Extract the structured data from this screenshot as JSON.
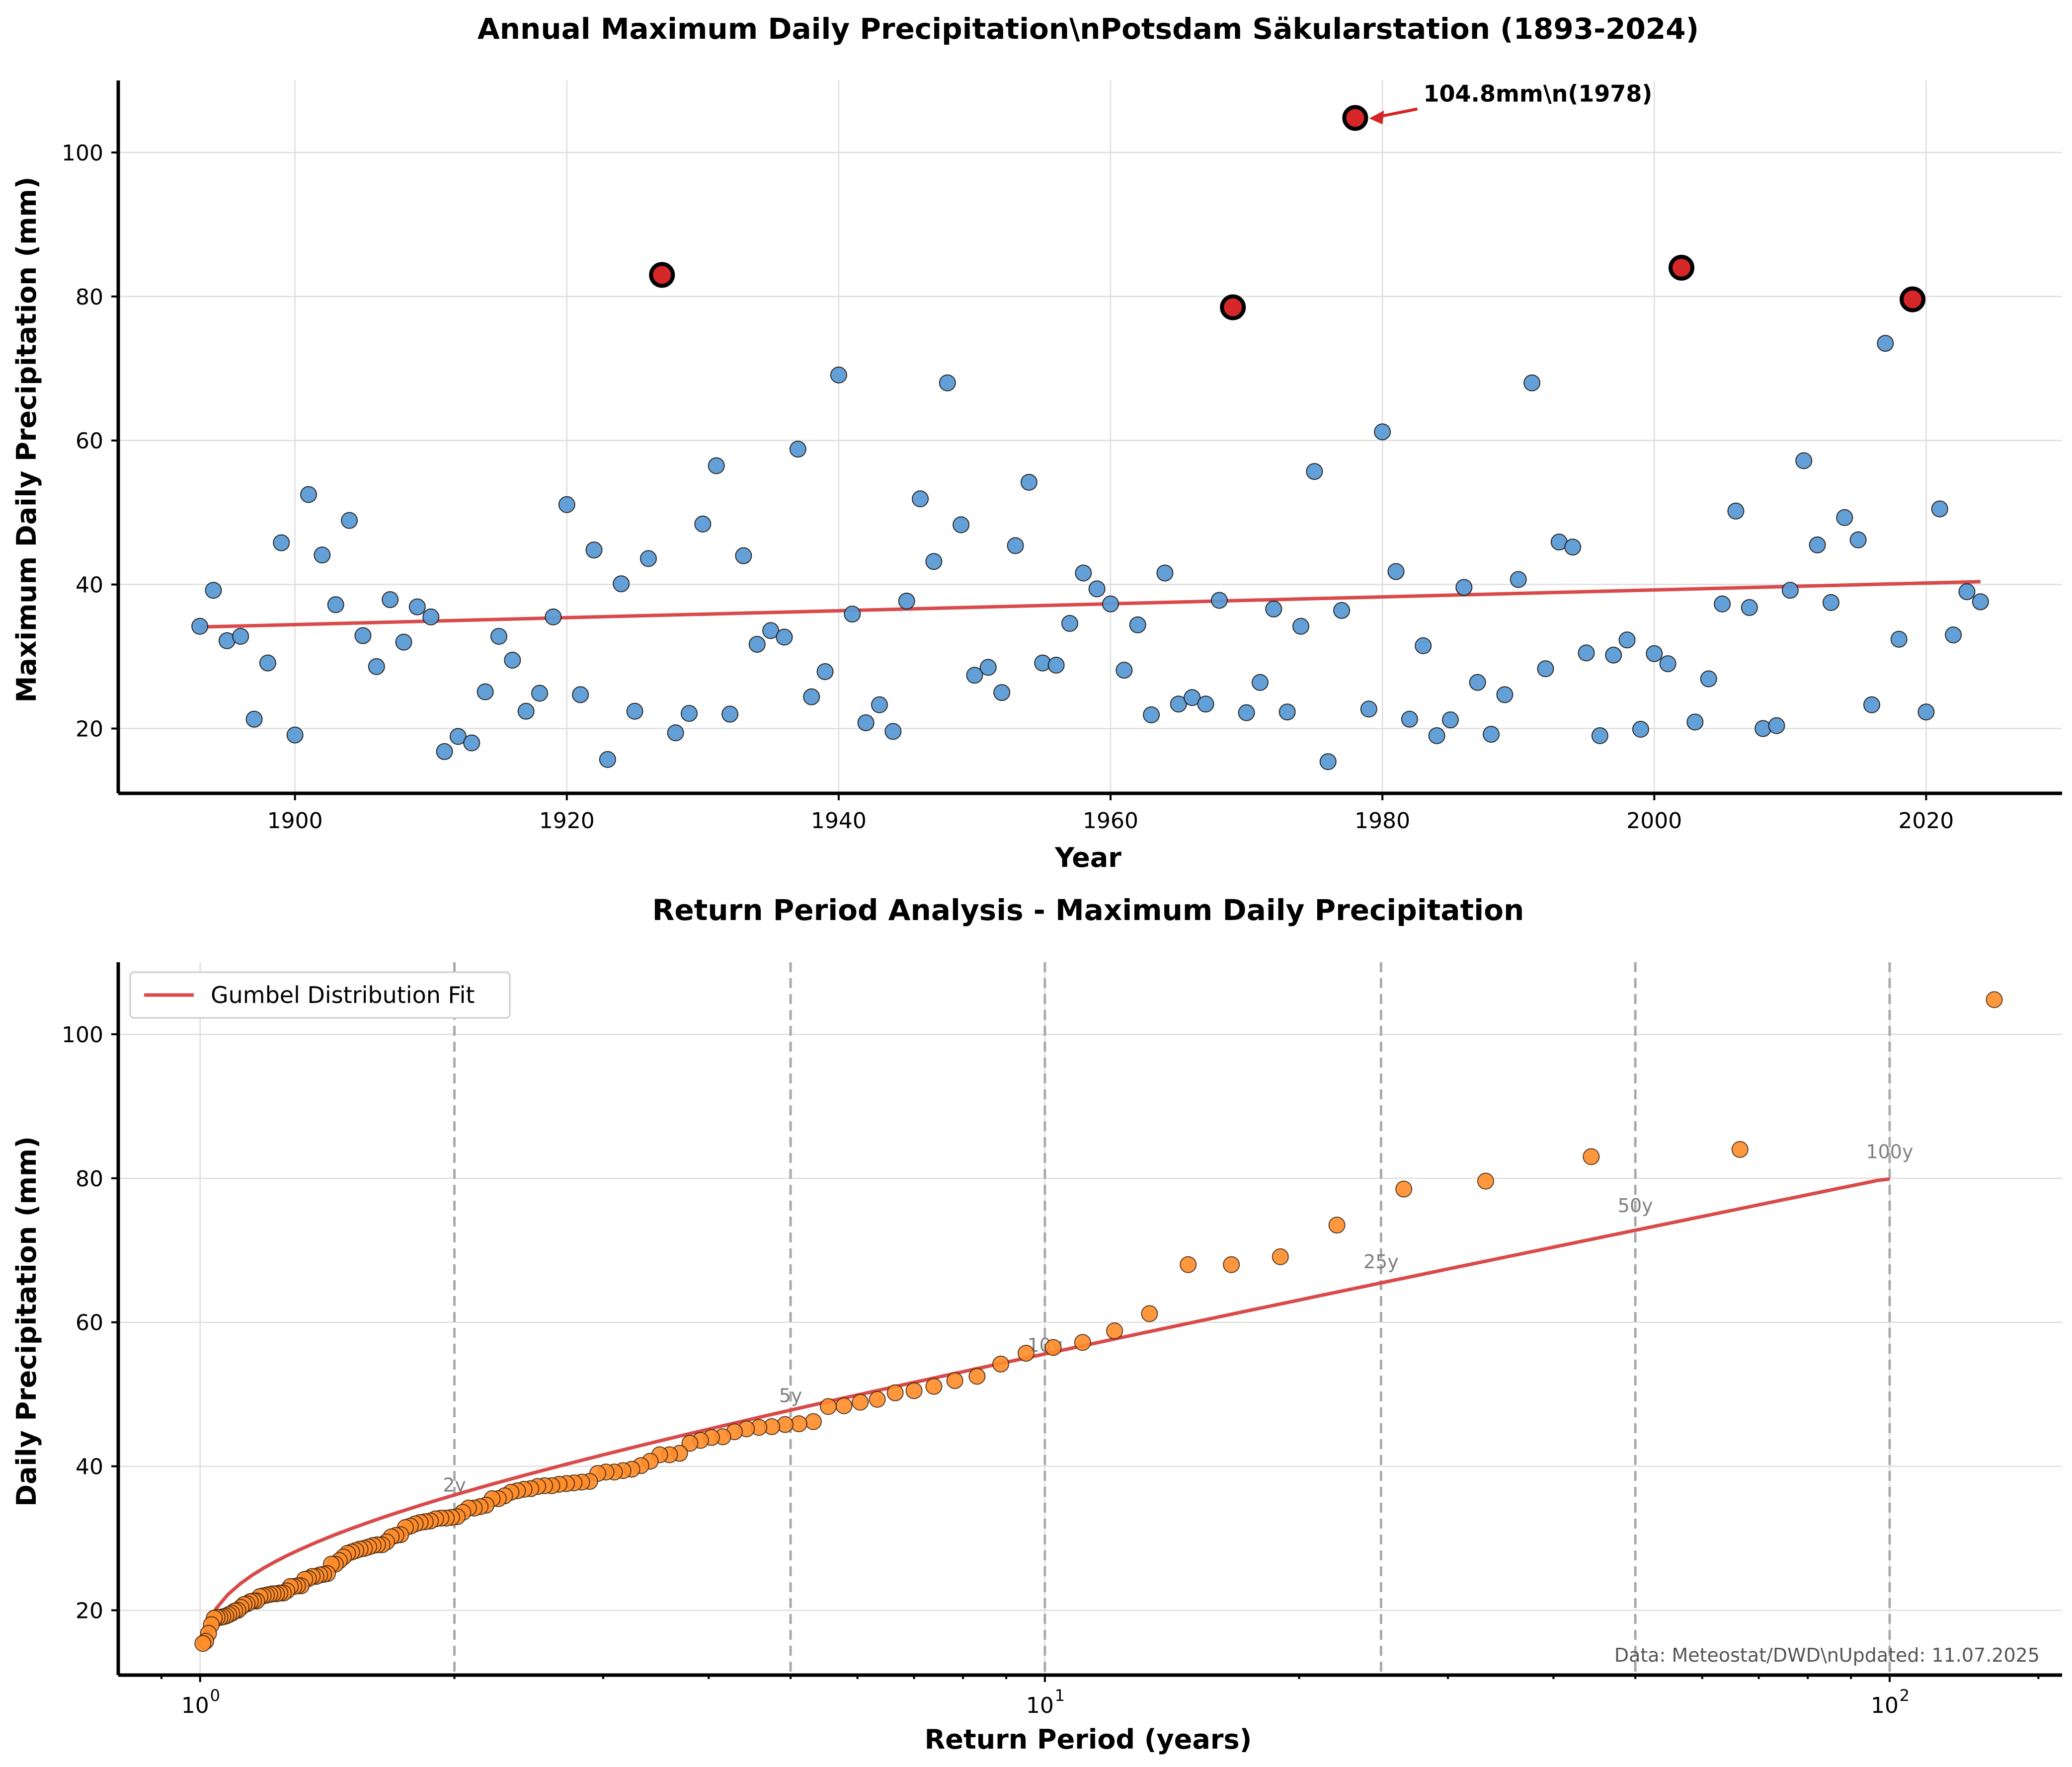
{
  "chart_data": [
    {
      "type": "scatter",
      "title": "Annual Maximum Daily Precipitation\\nPotsdam Säkularstation (1893-2024)",
      "xlabel": "Year",
      "ylabel": "Maximum Daily Precipitation (mm)",
      "xlim": [
        1887,
        2030
      ],
      "ylim": [
        11,
        110
      ],
      "xticks": [
        1900,
        1920,
        1940,
        1960,
        1980,
        2000,
        2020
      ],
      "yticks": [
        20,
        40,
        60,
        80,
        100
      ],
      "grid": true,
      "colors": {
        "points": "#5b9bd5",
        "extremes": "#d62728",
        "trend": "#d94a4a"
      },
      "x": [
        1893,
        1894,
        1895,
        1896,
        1897,
        1898,
        1899,
        1900,
        1901,
        1902,
        1903,
        1904,
        1905,
        1906,
        1907,
        1908,
        1909,
        1910,
        1911,
        1912,
        1913,
        1914,
        1915,
        1916,
        1917,
        1918,
        1919,
        1920,
        1921,
        1922,
        1923,
        1924,
        1925,
        1926,
        1927,
        1928,
        1929,
        1930,
        1931,
        1932,
        1933,
        1934,
        1935,
        1936,
        1937,
        1938,
        1939,
        1940,
        1941,
        1942,
        1943,
        1944,
        1945,
        1946,
        1947,
        1948,
        1949,
        1950,
        1951,
        1952,
        1953,
        1954,
        1955,
        1956,
        1957,
        1958,
        1959,
        1960,
        1961,
        1962,
        1963,
        1964,
        1965,
        1966,
        1967,
        1968,
        1969,
        1970,
        1971,
        1972,
        1973,
        1974,
        1975,
        1976,
        1977,
        1978,
        1979,
        1980,
        1981,
        1982,
        1983,
        1984,
        1985,
        1986,
        1987,
        1988,
        1989,
        1990,
        1991,
        1992,
        1993,
        1994,
        1995,
        1996,
        1997,
        1998,
        1999,
        2000,
        2001,
        2002,
        2003,
        2004,
        2005,
        2006,
        2007,
        2008,
        2009,
        2010,
        2011,
        2012,
        2013,
        2014,
        2015,
        2016,
        2017,
        2018,
        2019,
        2020,
        2021,
        2022,
        2023,
        2024
      ],
      "y": [
        34.2,
        39.2,
        32.2,
        32.8,
        21.3,
        29.1,
        45.8,
        19.1,
        52.5,
        44.1,
        37.2,
        48.9,
        32.9,
        28.6,
        37.9,
        32.0,
        36.9,
        35.5,
        16.8,
        18.9,
        18.0,
        25.1,
        32.8,
        29.5,
        22.4,
        24.9,
        35.5,
        51.1,
        24.7,
        44.8,
        15.7,
        40.1,
        22.4,
        43.6,
        83.0,
        19.4,
        22.1,
        48.4,
        56.5,
        22.0,
        44.0,
        31.7,
        33.6,
        32.7,
        58.8,
        24.4,
        27.9,
        69.1,
        35.9,
        20.8,
        23.3,
        19.6,
        37.7,
        51.9,
        43.2,
        68.0,
        48.3,
        27.4,
        28.5,
        25.0,
        45.4,
        54.2,
        29.1,
        28.8,
        34.6,
        41.6,
        39.4,
        37.3,
        28.1,
        34.4,
        21.9,
        41.6,
        23.4,
        24.3,
        23.4,
        37.8,
        78.5,
        22.2,
        26.4,
        36.6,
        22.3,
        34.2,
        55.7,
        15.4,
        36.4,
        104.8,
        22.7,
        61.2,
        41.8,
        21.3,
        31.5,
        19.0,
        21.2,
        39.6,
        26.4,
        19.2,
        24.7,
        40.7,
        68.0,
        28.3,
        45.9,
        45.2,
        30.5,
        19.0,
        30.2,
        32.3,
        19.9,
        30.4,
        29.0,
        84.0,
        20.9,
        26.9,
        37.3,
        50.2,
        36.8,
        20.0,
        20.4,
        39.2,
        57.2,
        45.5,
        37.5,
        49.3,
        46.2,
        23.3,
        73.5,
        32.4,
        79.6,
        22.3,
        50.5,
        33.0,
        39.0,
        37.6
      ],
      "extremes": [
        {
          "year": 1927,
          "value": 83.0
        },
        {
          "year": 1969,
          "value": 78.5
        },
        {
          "year": 1978,
          "value": 104.8
        },
        {
          "year": 2002,
          "value": 84.0
        },
        {
          "year": 2019,
          "value": 79.6
        }
      ],
      "trend": {
        "x": [
          1893,
          2024
        ],
        "y": [
          34.1,
          40.4
        ]
      },
      "annotation": {
        "text": "104.8mm\\n(1978)",
        "year": 1978,
        "value": 104.8
      }
    },
    {
      "type": "scatter",
      "title": "Return Period Analysis - Maximum Daily Precipitation",
      "xlabel": "Return Period (years)",
      "ylabel": "Daily Precipitation (mm)",
      "xscale": "log",
      "xlim": [
        0.8,
        160
      ],
      "ylim": [
        11,
        110
      ],
      "xticks": [
        {
          "value": 1,
          "base": "10",
          "exp": "0"
        },
        {
          "value": 10,
          "base": "10",
          "exp": "1"
        },
        {
          "value": 100,
          "base": "10",
          "exp": "2"
        }
      ],
      "yticks": [
        20,
        40,
        60,
        80,
        100
      ],
      "grid": true,
      "legend": {
        "position": "top-left",
        "entries": [
          "Gumbel Distribution Fit"
        ]
      },
      "colors": {
        "points": "#ff8c2a",
        "fit": "#d94a4a",
        "ref_lines": "#aaaaaa"
      },
      "return_period_lines": [
        {
          "period": 2,
          "label": "2y"
        },
        {
          "period": 5,
          "label": "5y"
        },
        {
          "period": 10,
          "label": "10y"
        },
        {
          "period": 25,
          "label": "25y"
        },
        {
          "period": 50,
          "label": "50y"
        },
        {
          "period": 100,
          "label": "100y"
        }
      ],
      "gumbel_fit": {
        "name": "Gumbel Distribution Fit",
        "x": [
          1.01,
          1.05,
          1.1,
          1.2,
          1.3,
          1.5,
          1.7,
          2,
          2.5,
          3,
          4,
          5,
          6,
          8,
          10,
          15,
          20,
          25,
          30,
          40,
          50,
          70,
          100
        ],
        "y": [
          16.0,
          19.2,
          21.2,
          23.7,
          25.5,
          28.2,
          30.4,
          33.0,
          36.5,
          39.2,
          43.4,
          46.6,
          49.2,
          53.4,
          56.6,
          62.3,
          66.4,
          69.5,
          72.1,
          76.1,
          79.2,
          83.5,
          79.9
        ]
      },
      "footer": "Data: Meteostat/DWD\\nUpdated: 11.07.2025"
    }
  ]
}
